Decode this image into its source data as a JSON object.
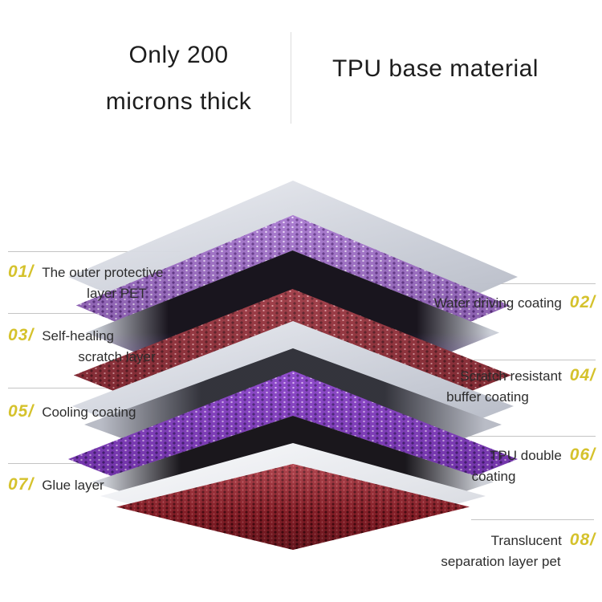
{
  "header": {
    "left_title_line1": "Only 200",
    "left_title_line2": "microns thick",
    "right_title": "TPU base material"
  },
  "labels": {
    "left": [
      {
        "num": "01/",
        "line1": "The outer protective",
        "line2": "layer PET"
      },
      {
        "num": "03/",
        "line1": "Self-healing",
        "line2": "scratch layer"
      },
      {
        "num": "05/",
        "line1": "Cooling coating",
        "line2": ""
      },
      {
        "num": "07/",
        "line1": "Glue layer",
        "line2": ""
      }
    ],
    "right": [
      {
        "num": "02/",
        "line1": "Water driving coating",
        "line2": ""
      },
      {
        "num": "04/",
        "line1": "Scratch resistant",
        "line2": "buffer coating"
      },
      {
        "num": "06/",
        "line1": "TPU double",
        "line2": "coating"
      },
      {
        "num": "08/",
        "line1": "Translucent",
        "line2": "separation layer pet"
      }
    ]
  },
  "diagram": {
    "type": "exploded-layer-stack",
    "layers": [
      {
        "id": "01",
        "name": "The outer protective layer PET",
        "appearance": "light gray translucent sheet"
      },
      {
        "id": "02",
        "name": "Water driving coating",
        "appearance": "purple honeycomb mesh"
      },
      {
        "id": "03",
        "name": "Self-healing scratch layer",
        "appearance": "black sheet with purple glow"
      },
      {
        "id": "04",
        "name": "Scratch resistant buffer coating",
        "appearance": "dark red honeycomb mesh"
      },
      {
        "id": "05",
        "name": "Cooling coating",
        "appearance": "light gray sheet"
      },
      {
        "id": "",
        "name": "intermediate sheet",
        "appearance": "dark gray sheet"
      },
      {
        "id": "06",
        "name": "TPU double coating",
        "appearance": "bright purple honeycomb mesh"
      },
      {
        "id": "07",
        "name": "Glue layer",
        "appearance": "black sheet"
      },
      {
        "id": "",
        "name": "intermediate sheet",
        "appearance": "white sheet"
      },
      {
        "id": "08",
        "name": "Translucent separation layer pet",
        "appearance": "red honeycomb mesh"
      }
    ]
  },
  "colors": {
    "accent_number": "#d5c22c",
    "text": "#2d2d2d",
    "title_text": "#1d1d1d",
    "leader_line": "#c4c4c4",
    "purple_mesh": "#9a63c8",
    "purple_mesh_bright": "#7d2ec4",
    "red_mesh": "#93222e",
    "red_mesh_bottom": "#a2242f",
    "gray_sheet": "#c6cad4",
    "background": "#ffffff"
  }
}
